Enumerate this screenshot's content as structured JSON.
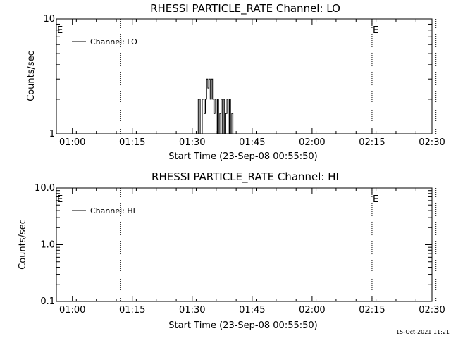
{
  "footer_timestamp": "15-Oct-2021 11:21",
  "chart_data": [
    {
      "type": "line",
      "title": "RHESSI PARTICLE_RATE Channel: LO",
      "xlabel": "Start Time (23-Sep-08 00:55:50)",
      "ylabel": "Counts/sec",
      "yscale": "log",
      "ylim": [
        1,
        10
      ],
      "y_ticks": [
        1,
        10
      ],
      "y_tick_labels": [
        "1",
        "10"
      ],
      "xlim_minutes": [
        56,
        150
      ],
      "x_ticks_minutes": [
        60,
        75,
        90,
        105,
        120,
        135,
        150
      ],
      "x_tick_labels": [
        "01:00",
        "01:15",
        "01:30",
        "01:45",
        "02:00",
        "02:15",
        "02:30"
      ],
      "legend": {
        "label": "Channel: LO",
        "position": "top-left"
      },
      "event_lines_minutes": [
        72,
        135,
        151
      ],
      "event_marks": [
        {
          "label": "E",
          "minute": 56
        },
        {
          "label": "E",
          "minute": 135
        }
      ],
      "series": [
        {
          "name": "Channel: LO",
          "x_minutes": [
            91.5,
            91.5,
            92,
            92,
            92.5,
            92.5,
            93,
            93,
            93.3,
            93.3,
            93.6,
            93.6,
            93.9,
            93.9,
            94.2,
            94.2,
            94.5,
            94.5,
            94.8,
            94.8,
            95.1,
            95.1,
            95.4,
            95.4,
            95.7,
            95.7,
            96,
            96,
            96.3,
            96.3,
            96.6,
            96.6,
            96.9,
            96.9,
            97.2,
            97.2,
            97.5,
            97.5,
            97.8,
            97.8,
            98.1,
            98.1,
            98.4,
            98.4,
            98.7,
            98.7,
            99,
            99,
            99.3,
            99.3,
            99.6,
            99.6,
            99.9,
            99.9,
            100.2,
            100.2,
            100.5
          ],
          "values": [
            1,
            2,
            2,
            1,
            1,
            2,
            2,
            1.5,
            1.5,
            2,
            2,
            3,
            3,
            2.5,
            2.5,
            3,
            3,
            2,
            2,
            3,
            3,
            2,
            2,
            1.5,
            1.5,
            2,
            2,
            1,
            1,
            2,
            2,
            1,
            1,
            1.5,
            1.5,
            2,
            2,
            1,
            1,
            2,
            2,
            1,
            1,
            1.5,
            1.5,
            2,
            2,
            1,
            1,
            2,
            2,
            1,
            1,
            1.5,
            1.5,
            1,
            1
          ]
        }
      ]
    },
    {
      "type": "line",
      "title": "RHESSI PARTICLE_RATE Channel: HI",
      "xlabel": "Start Time (23-Sep-08 00:55:50)",
      "ylabel": "Counts/sec",
      "yscale": "log",
      "ylim": [
        0.1,
        10
      ],
      "y_ticks": [
        0.1,
        1,
        10
      ],
      "y_tick_labels": [
        "0.1",
        "1.0",
        "10.0"
      ],
      "xlim_minutes": [
        56,
        150
      ],
      "x_ticks_minutes": [
        60,
        75,
        90,
        105,
        120,
        135,
        150
      ],
      "x_tick_labels": [
        "01:00",
        "01:15",
        "01:30",
        "01:45",
        "02:00",
        "02:15",
        "02:30"
      ],
      "legend": {
        "label": "Channel: HI",
        "position": "top-left"
      },
      "event_lines_minutes": [
        72,
        135,
        151
      ],
      "event_marks": [
        {
          "label": "E",
          "minute": 56
        },
        {
          "label": "E",
          "minute": 135
        }
      ],
      "series": [
        {
          "name": "Channel: HI",
          "x_minutes": [],
          "values": []
        }
      ]
    }
  ]
}
